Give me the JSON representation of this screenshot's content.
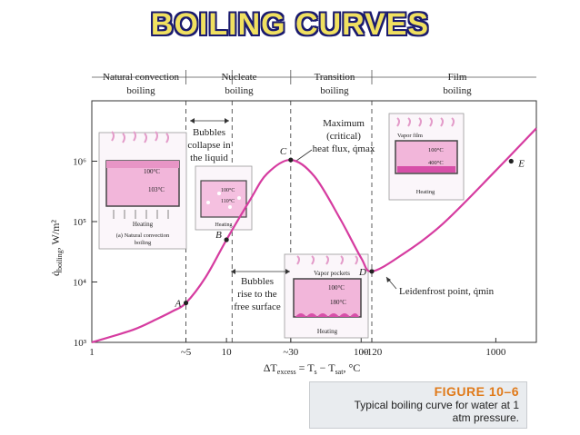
{
  "slide_title": "BOILING CURVES",
  "figure": {
    "regimes": [
      {
        "label": "Natural convection boiling"
      },
      {
        "label": "Nucleate boiling"
      },
      {
        "label": "Transition boiling"
      },
      {
        "label": "Film boiling"
      }
    ],
    "annotations": {
      "bubbles_collapse": [
        "Bubbles",
        "collapse in",
        "the liquid"
      ],
      "bubbles_rise": [
        "Bubbles",
        "rise to the",
        "free surface"
      ],
      "maximum": [
        "Maximum",
        "(critical)",
        "heat flux, q̇max"
      ],
      "leidenfrost": "Leidenfrost point, q̇min"
    },
    "insets": {
      "natural": {
        "t1": "100°C",
        "t2": "103°C",
        "heating": "Heating",
        "caption": "(a) Natural convection boiling"
      },
      "nucleate": {
        "t1": "100°C",
        "t2": "110°C",
        "heating": "Heating"
      },
      "transition": {
        "title": "Vapor pockets",
        "t1": "100°C",
        "t2": "180°C",
        "heating": "Heating"
      },
      "film": {
        "title": "Vapor film",
        "t1": "100°C",
        "t2": "400°C",
        "heating": "Heating"
      }
    },
    "caption": {
      "head": "FIGURE 10–6",
      "text": [
        "Typical boiling curve for water at 1",
        "atm pressure."
      ]
    }
  },
  "chart_data": {
    "type": "line",
    "xscale": "log",
    "yscale": "log",
    "xlabel": "ΔTexcess = Ts − Tsat, °C",
    "ylabel": "q̇boiling, W/m²",
    "xlim": [
      1,
      2000
    ],
    "ylim": [
      1000,
      10000000
    ],
    "x_ticks": [
      "1",
      "~5",
      "10",
      "~30",
      "100",
      "~120",
      "1000"
    ],
    "x_tick_values": [
      1,
      5,
      10,
      30,
      100,
      120,
      1000
    ],
    "y_ticks": [
      "10³",
      "10⁴",
      "10⁵",
      "10⁶"
    ],
    "y_tick_values": [
      1000,
      10000,
      100000,
      1000000
    ],
    "regime_boundaries": [
      5,
      11,
      30,
      120
    ],
    "series": [
      {
        "x": [
          1,
          2,
          3,
          4,
          5,
          7,
          10,
          15,
          20,
          30,
          45,
          70,
          100,
          120,
          200,
          400,
          1000,
          2000
        ],
        "y": [
          1000,
          1600,
          2400,
          3300,
          4500,
          12000,
          50000,
          230000,
          620000,
          1050000,
          560000,
          110000,
          25000,
          15000,
          28000,
          90000,
          700000,
          3500000
        ]
      }
    ],
    "points": [
      {
        "label": "A",
        "x": 5,
        "y": 4500
      },
      {
        "label": "B",
        "x": 10,
        "y": 50000
      },
      {
        "label": "C",
        "x": 30,
        "y": 1050000
      },
      {
        "label": "D",
        "x": 120,
        "y": 15000
      },
      {
        "label": "E",
        "x": 1300,
        "y": 1000000
      }
    ],
    "grid": false,
    "line_color": "#d63ca0"
  }
}
